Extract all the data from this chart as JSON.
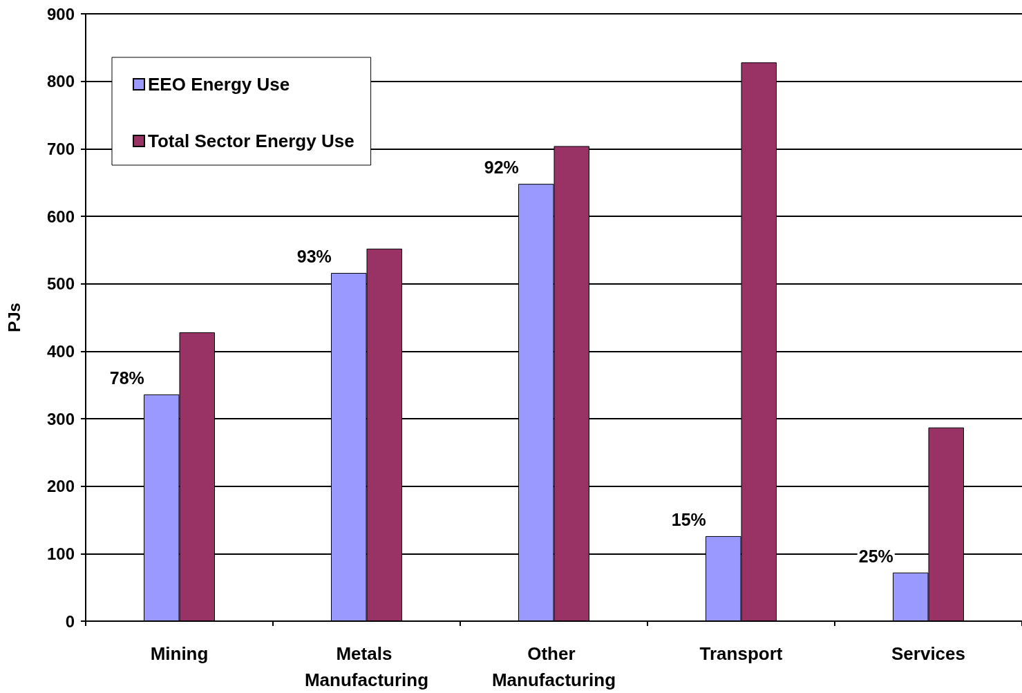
{
  "chart_data": {
    "type": "bar",
    "ylabel": "PJs",
    "categories": [
      "Mining",
      "Metals Manufacturing",
      "Other Manufacturing",
      "Transport",
      "Services"
    ],
    "series": [
      {
        "name": "EEO Energy Use",
        "color": "#9999ff",
        "values": [
          336,
          516,
          648,
          126,
          72
        ]
      },
      {
        "name": "Total Sector Energy Use",
        "color": "#993366",
        "values": [
          428,
          552,
          704,
          828,
          287
        ]
      }
    ],
    "annotations": [
      {
        "text": "78%",
        "x": "Mining",
        "y": 336
      },
      {
        "text": "93%",
        "x": "Metals Manufacturing",
        "y": 516
      },
      {
        "text": "92%",
        "x": "Other Manufacturing",
        "y": 648
      },
      {
        "text": "15%",
        "x": "Transport",
        "y": 126
      },
      {
        "text": "25%",
        "x": "Services",
        "y": 72
      }
    ],
    "ylim": [
      0,
      900
    ],
    "yticks": [
      0,
      100,
      200,
      300,
      400,
      500,
      600,
      700,
      800,
      900
    ],
    "grid": "y",
    "legend": "top left"
  }
}
